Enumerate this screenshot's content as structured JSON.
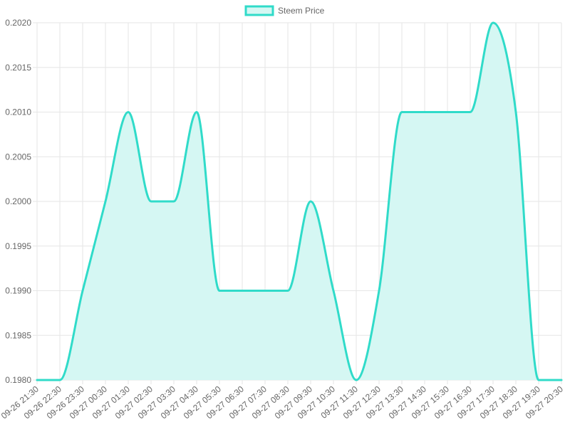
{
  "chart_data": {
    "type": "area",
    "title": "",
    "xlabel": "",
    "ylabel": "",
    "x": [
      "09-26 21:30",
      "09-26 22:30",
      "09-26 23:30",
      "09-27 00:30",
      "09-27 01:30",
      "09-27 02:30",
      "09-27 03:30",
      "09-27 04:30",
      "09-27 05:30",
      "09-27 06:30",
      "09-27 07:30",
      "09-27 08:30",
      "09-27 09:30",
      "09-27 10:30",
      "09-27 11:30",
      "09-27 12:30",
      "09-27 13:30",
      "09-27 14:30",
      "09-27 15:30",
      "09-27 16:30",
      "09-27 17:30",
      "09-27 18:30",
      "09-27 19:30",
      "09-27 20:30"
    ],
    "series": [
      {
        "name": "Steem Price",
        "color": "#30dbc9",
        "fill": "#d5f7f3",
        "values": [
          0.198,
          0.198,
          0.199,
          0.2,
          0.201,
          0.2,
          0.2,
          0.201,
          0.199,
          0.199,
          0.199,
          0.199,
          0.2,
          0.199,
          0.198,
          0.199,
          0.201,
          0.201,
          0.201,
          0.201,
          0.202,
          0.201,
          0.198,
          0.198
        ]
      }
    ],
    "ylim": [
      0.198,
      0.202
    ],
    "yticks": [
      "0.2020",
      "0.2015",
      "0.2010",
      "0.2005",
      "0.2000",
      "0.1995",
      "0.1990",
      "0.1985",
      "0.1980"
    ],
    "ytick_values": [
      0.202,
      0.2015,
      0.201,
      0.2005,
      0.2,
      0.1995,
      0.199,
      0.1985,
      0.198
    ],
    "grid": true,
    "legend": "top-center"
  }
}
